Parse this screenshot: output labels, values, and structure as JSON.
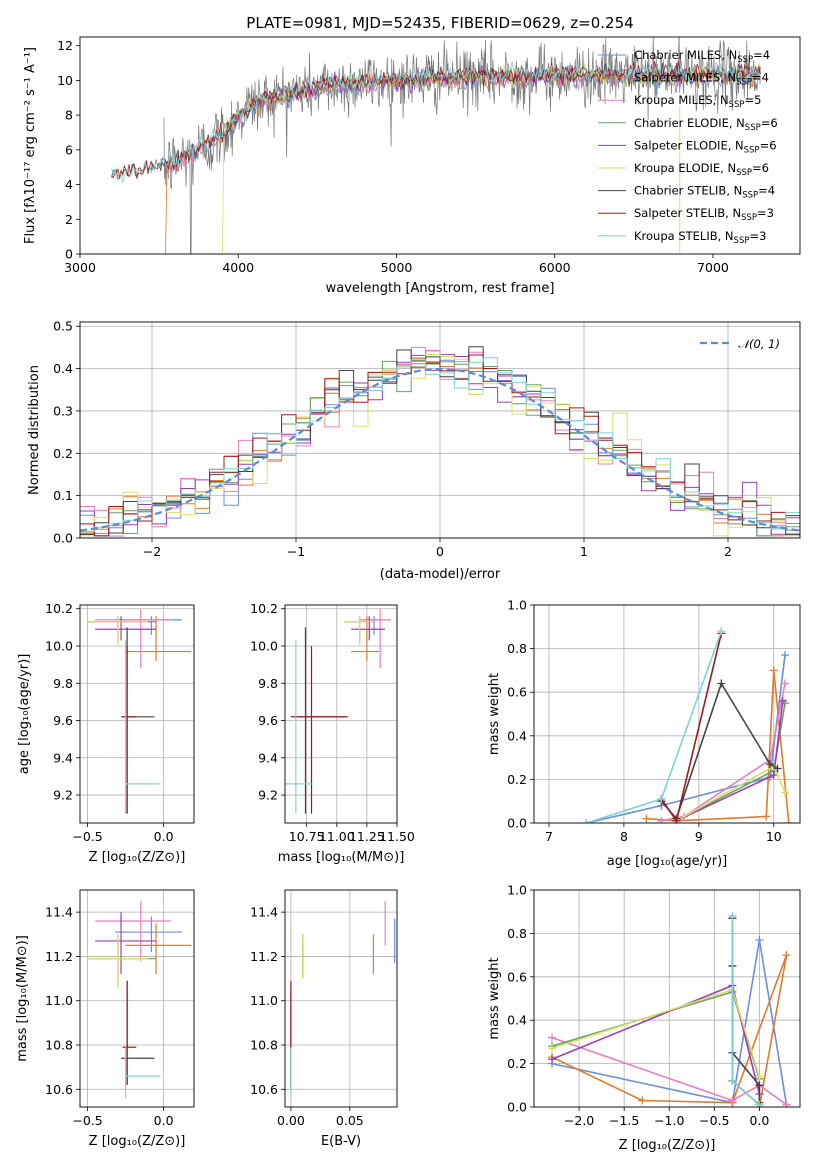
{
  "colors": {
    "Chabrier MILES": "#6a8fdc",
    "Salpeter MILES": "#e07a2c",
    "Kroupa MILES": "#e87fbf",
    "Chabrier ELODIE": "#6aa06a",
    "Salpeter ELODIE": "#9b3fb5",
    "Kroupa ELODIE": "#d9e06a",
    "Chabrier STELIB": "#444444",
    "Salpeter STELIB": "#9e1a1a",
    "Kroupa STELIB": "#7fd3d6",
    "normal": "#5b8bd8"
  },
  "chart_data": [
    {
      "id": "spectrum",
      "type": "line",
      "title": "PLATE=0981, MJD=52435, FIBERID=0629, z=0.254",
      "xlabel": "wavelength [Angstrom, rest frame]",
      "ylabel": "Flux [fλ10⁻¹⁷ erg cm⁻² s⁻¹ A⁻¹]",
      "xlim": [
        3000,
        7550
      ],
      "ylim": [
        0,
        12.5
      ],
      "xticks": [
        "3000",
        "4000",
        "5000",
        "6000",
        "7000"
      ],
      "yticks": [
        "0",
        "2",
        "4",
        "6",
        "8",
        "10",
        "12"
      ],
      "legend_position": "top-right",
      "legend": [
        {
          "label": "Chabrier MILES, N",
          "sub": "SSP",
          "tail": "=4",
          "series": "Chabrier MILES"
        },
        {
          "label": "Salpeter MILES, N",
          "sub": "SSP",
          "tail": "=4",
          "series": "Salpeter MILES"
        },
        {
          "label": "Kroupa MILES, N",
          "sub": "SSP",
          "tail": "=5",
          "series": "Kroupa MILES"
        },
        {
          "label": "Chabrier ELODIE, N",
          "sub": "SSP",
          "tail": "=6",
          "series": "Chabrier ELODIE"
        },
        {
          "label": "Salpeter ELODIE, N",
          "sub": "SSP",
          "tail": "=6",
          "series": "Salpeter ELODIE"
        },
        {
          "label": "Kroupa ELODIE, N",
          "sub": "SSP",
          "tail": "=6",
          "series": "Kroupa ELODIE"
        },
        {
          "label": "Chabrier STELIB, N",
          "sub": "SSP",
          "tail": "=4",
          "series": "Chabrier STELIB"
        },
        {
          "label": "Salpeter STELIB, N",
          "sub": "SSP",
          "tail": "=3",
          "series": "Salpeter STELIB"
        },
        {
          "label": "Kroupa STELIB, N",
          "sub": "SSP",
          "tail": "=3",
          "series": "Kroupa STELIB"
        }
      ],
      "continuum": {
        "x": [
          3200,
          3400,
          3600,
          3750,
          3900,
          4000,
          4100,
          4300,
          4500,
          4800,
          5200,
          5600,
          6000,
          6400,
          6800,
          7300
        ],
        "y": [
          4.4,
          4.8,
          5.2,
          6.0,
          6.8,
          8.0,
          8.7,
          9.2,
          9.6,
          9.9,
          10.1,
          10.2,
          10.3,
          10.3,
          10.3,
          10.4
        ]
      },
      "models_x_range": [
        3200,
        7300
      ],
      "data_x_range": [
        3530,
        7300
      ]
    },
    {
      "id": "residuals",
      "type": "histogram",
      "xlabel": "(data-model)/error",
      "ylabel": "Normed distribution",
      "xlim": [
        -2.5,
        2.5
      ],
      "ylim": [
        0,
        0.51
      ],
      "xticks": [
        "−2",
        "−1",
        "0",
        "1",
        "2"
      ],
      "yticks": [
        "0.0",
        "0.1",
        "0.2",
        "0.3",
        "0.4",
        "0.5"
      ],
      "legend_position": "top-right",
      "reference_label": "𝒩(0, 1)",
      "bin_width": 0.1
    },
    {
      "id": "z-age",
      "type": "errorbar",
      "xlabel": "Z [log₁₀(Z/Z⊙)]",
      "ylabel": "age  [log₁₀(age/yr)]",
      "xlim": [
        -0.55,
        0.2
      ],
      "ylim": [
        9.05,
        10.22
      ],
      "xticks": [
        "−0.5",
        "0.0"
      ],
      "yticks": [
        "9.2",
        "9.4",
        "9.6",
        "9.8",
        "10.0",
        "10.2"
      ]
    },
    {
      "id": "mass-age",
      "type": "errorbar",
      "xlabel": "mass [log₁₀(M/M⊙)]",
      "xlim": [
        10.57,
        11.5
      ],
      "ylim": [
        9.05,
        10.22
      ],
      "xticks": [
        "10.75",
        "11.00",
        "11.25",
        "11.50"
      ],
      "yticks": [
        "9.2",
        "9.4",
        "9.6",
        "9.8",
        "10.0",
        "10.2"
      ]
    },
    {
      "id": "age-weight",
      "type": "line",
      "xlabel": "age  [log₁₀(age/yr)]",
      "ylabel": "mass weight",
      "xlim": [
        6.8,
        10.35
      ],
      "ylim": [
        0,
        1.0
      ],
      "xticks": [
        "7",
        "8",
        "9",
        "10"
      ],
      "yticks": [
        "0.0",
        "0.2",
        "0.4",
        "0.6",
        "0.8",
        "1.0"
      ]
    },
    {
      "id": "z-mass",
      "type": "errorbar",
      "xlabel": "Z [log₁₀(Z/Z⊙)]",
      "ylabel": "mass [log₁₀(M/M⊙)]",
      "xlim": [
        -0.55,
        0.2
      ],
      "ylim": [
        10.52,
        11.5
      ],
      "xticks": [
        "−0.5",
        "0.0"
      ],
      "yticks": [
        "10.6",
        "10.8",
        "11.0",
        "11.2",
        "11.4"
      ]
    },
    {
      "id": "ebv-mass",
      "type": "errorbar",
      "xlabel": "E(B-V)",
      "xlim": [
        -0.005,
        0.09
      ],
      "ylim": [
        10.52,
        11.5
      ],
      "xticks": [
        "0.00",
        "0.05"
      ],
      "yticks": [
        "10.6",
        "10.8",
        "11.0",
        "11.2",
        "11.4"
      ]
    },
    {
      "id": "z-weight",
      "type": "line",
      "xlabel": "Z [log₁₀(Z/Z⊙)]",
      "ylabel": "mass weight",
      "xlim": [
        -2.5,
        0.45
      ],
      "ylim": [
        0,
        1.0
      ],
      "xticks": [
        "−2.0",
        "−1.5",
        "−1.0",
        "−0.5",
        "0.0"
      ],
      "yticks": [
        "0.0",
        "0.2",
        "0.4",
        "0.6",
        "0.8",
        "1.0"
      ]
    }
  ],
  "fits": [
    {
      "name": "Chabrier MILES",
      "Z": -0.08,
      "Zlo": -0.32,
      "Zhi": 0.12,
      "age": 10.14,
      "ageLo": 10.06,
      "ageHi": 10.16,
      "mass": 11.31,
      "massLo": 11.22,
      "massHi": 11.38,
      "ebv": 0.088,
      "ebvLo": 11.17,
      "ebvHi": 11.37,
      "ages": [
        7.5,
        8.5,
        9.95,
        10.15
      ],
      "weights": [
        0.0,
        0.08,
        0.21,
        0.77
      ],
      "Zs": [
        -2.3,
        -0.3,
        0.0,
        0.3
      ],
      "zw": [
        0.2,
        0.02,
        0.77,
        0.01
      ]
    },
    {
      "name": "Salpeter MILES",
      "Z": -0.05,
      "Zlo": -0.25,
      "Zhi": 0.18,
      "age": 9.97,
      "ageLo": 9.92,
      "ageHi": 10.16,
      "mass": 11.25,
      "massLo": 11.12,
      "massHi": 11.35,
      "ebv": 0.07,
      "ebvLo": 11.12,
      "ebvHi": 11.3,
      "ages": [
        8.3,
        8.7,
        9.9,
        10.0,
        10.2
      ],
      "weights": [
        0.02,
        0.01,
        0.03,
        0.7,
        0.0
      ],
      "Zs": [
        -2.3,
        -1.3,
        -0.3,
        0.3,
        0.0
      ],
      "zw": [
        0.23,
        0.03,
        0.02,
        0.7,
        0.0
      ]
    },
    {
      "name": "Kroupa MILES",
      "Z": -0.15,
      "Zlo": -0.45,
      "Zhi": 0.05,
      "age": 10.14,
      "ageLo": 9.88,
      "ageHi": 10.2,
      "mass": 11.36,
      "massLo": 11.18,
      "massHi": 11.45,
      "ebv": 0.08,
      "ebvLo": 11.25,
      "ebvHi": 11.45,
      "ages": [
        8.5,
        8.8,
        9.95,
        10.15
      ],
      "weights": [
        0.01,
        0.03,
        0.29,
        0.64
      ],
      "Zs": [
        -2.3,
        -0.3,
        0.0,
        0.3
      ],
      "zw": [
        0.32,
        0.03,
        0.1,
        0.01
      ]
    },
    {
      "name": "Chabrier ELODIE",
      "Z": -0.3,
      "Zlo": -0.5,
      "Zhi": -0.05,
      "age": 10.13,
      "ageLo": 10.02,
      "ageHi": 10.16,
      "mass": 11.19,
      "massLo": 11.06,
      "massHi": 11.3,
      "ebv": 0.01,
      "ebvLo": 11.1,
      "ebvHi": 11.25,
      "ages": [
        8.7,
        10.0,
        10.15
      ],
      "weights": [
        0.01,
        0.24,
        0.55
      ],
      "Zs": [
        -2.3,
        -0.3,
        0.0
      ],
      "zw": [
        0.28,
        0.53,
        0.13
      ]
    },
    {
      "name": "Salpeter ELODIE",
      "Z": -0.28,
      "Zlo": -0.45,
      "Zhi": -0.05,
      "age": 10.09,
      "ageLo": 10.03,
      "ageHi": 10.16,
      "mass": 11.27,
      "massLo": 11.12,
      "massHi": 11.4,
      "ebv": 0.01,
      "ebvLo": 11.12,
      "ebvHi": 11.3,
      "ages": [
        8.7,
        10.0,
        10.12
      ],
      "weights": [
        0.01,
        0.22,
        0.56
      ],
      "Zs": [
        -2.3,
        -0.3,
        0.0
      ],
      "zw": [
        0.22,
        0.56,
        0.06
      ]
    },
    {
      "name": "Kroupa ELODIE",
      "Z": -0.3,
      "Zlo": -0.5,
      "Zhi": -0.1,
      "age": 10.13,
      "ageLo": 10.0,
      "ageHi": 10.16,
      "mass": 11.19,
      "massLo": 11.06,
      "massHi": 11.3,
      "ebv": 0.01,
      "ebvLo": 11.1,
      "ebvHi": 11.3,
      "ages": [
        8.7,
        10.0,
        10.15
      ],
      "weights": [
        0.01,
        0.26,
        0.14
      ],
      "Zs": [
        -2.3,
        -0.3,
        0.0
      ],
      "zw": [
        0.27,
        0.54,
        0.14
      ]
    },
    {
      "name": "Chabrier STELIB",
      "Z": -0.24,
      "Zlo": -0.28,
      "Zhi": -0.06,
      "age": 9.62,
      "ageLo": 9.1,
      "ageHi": 10.1,
      "mass": 10.74,
      "massLo": 10.62,
      "massHi": 11.09,
      "ebv": 0.0,
      "ebvLo": 10.6,
      "ebvHi": 11.05,
      "ages": [
        8.5,
        8.7,
        9.3,
        9.95,
        10.05
      ],
      "weights": [
        0.1,
        0.02,
        0.64,
        0.27,
        0.25
      ],
      "Zs": [
        -0.3,
        -0.3,
        0.0,
        0.0
      ],
      "zw": [
        0.65,
        0.25,
        0.1,
        0.02
      ]
    },
    {
      "name": "Salpeter STELIB",
      "Z": -0.24,
      "Zlo": -0.27,
      "Zhi": -0.18,
      "age": 9.62,
      "ageLo": 9.1,
      "ageHi": 10.0,
      "mass": 10.79,
      "massLo": 10.62,
      "massHi": 11.09,
      "ebv": 0.0,
      "ebvLo": 10.62,
      "ebvHi": 11.09,
      "ages": [
        8.5,
        8.7,
        9.3
      ],
      "weights": [
        0.11,
        0.01,
        0.87
      ],
      "Zs": [
        -0.3,
        -0.3,
        0.0
      ],
      "zw": [
        0.87,
        0.12,
        0.01
      ]
    },
    {
      "name": "Kroupa STELIB",
      "Z": -0.25,
      "Zlo": -0.25,
      "Zhi": -0.02,
      "age": 9.26,
      "ageLo": 9.1,
      "ageHi": 10.03,
      "mass": 10.66,
      "massLo": 10.56,
      "massHi": 10.79,
      "ebv": 0.0,
      "ebvLo": 10.56,
      "ebvHi": 10.79,
      "ages": [
        7.5,
        8.5,
        9.3
      ],
      "weights": [
        0.0,
        0.11,
        0.88
      ],
      "Zs": [
        -0.3,
        -0.3,
        0.0
      ],
      "zw": [
        0.88,
        0.12,
        0.01
      ]
    }
  ]
}
